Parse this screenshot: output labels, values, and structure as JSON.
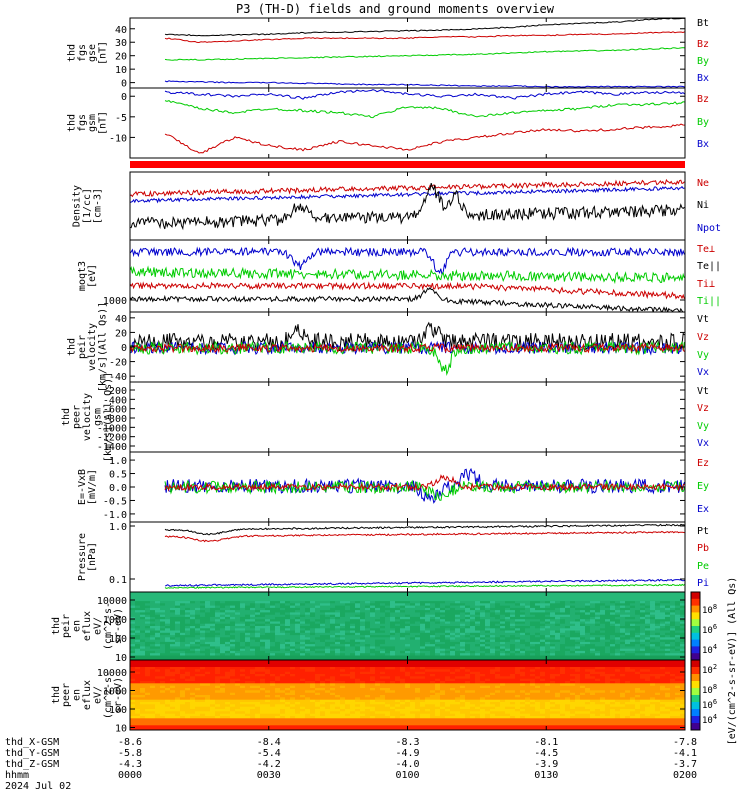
{
  "chart_data": {
    "type": "line",
    "title": "P3 (TH-D) fields and ground moments overview",
    "date_label": "2024 Jul 02",
    "panels": [
      {
        "id": "fgs_gse",
        "ylabel": [
          "thd",
          "fgs",
          "gse",
          "[nT]"
        ],
        "yticks": [
          0,
          10,
          20,
          30,
          40
        ],
        "ylim": [
          -4,
          48
        ],
        "series": [
          {
            "name": "Bt",
            "color": "#000000",
            "values": [
              36,
              35,
              35.5,
              36,
              37,
              37.5,
              38,
              38.5,
              39,
              40,
              41,
              43,
              44,
              45,
              47,
              48
            ]
          },
          {
            "name": "Bz",
            "color": "#cc0000",
            "values": [
              33,
              30,
              31,
              32,
              33,
              33,
              33,
              33,
              34,
              34,
              35,
              35,
              36,
              36,
              37,
              37.5
            ]
          },
          {
            "name": "By",
            "color": "#00cc00",
            "values": [
              17,
              17,
              17.5,
              18,
              18.5,
              19,
              19.5,
              20,
              20.5,
              21,
              22,
              23,
              23.5,
              24,
              25,
              26
            ]
          },
          {
            "name": "Bx",
            "color": "#0000cc",
            "values": [
              1,
              0.5,
              0,
              0,
              -0.5,
              -1,
              -1.5,
              -1.5,
              -2,
              -2.5,
              -2.5,
              -3,
              -3,
              -3,
              -3,
              -3
            ]
          }
        ]
      },
      {
        "id": "fgs_gsm",
        "ylabel": [
          "thd",
          "fgs",
          "gsm",
          "[nT]"
        ],
        "yticks": [
          -10,
          -5,
          0
        ],
        "ylim": [
          -15,
          2
        ],
        "series": [
          {
            "name": "Bz",
            "color": "#cc0000",
            "values": [
              -9,
              -14,
              -10,
              -12,
              -13,
              -11,
              -12,
              -13,
              -11,
              -10,
              -9,
              -8,
              -8.5,
              -8,
              -7.5,
              -7
            ]
          },
          {
            "name": "By",
            "color": "#00cc00",
            "values": [
              -1,
              -3,
              -4,
              -3,
              -3.5,
              -4,
              -5,
              -2.5,
              -3,
              -5,
              -4,
              -3.5,
              -3,
              -2,
              -2,
              -1.5
            ]
          },
          {
            "name": "Bx",
            "color": "#0000cc",
            "values": [
              1,
              0.5,
              0,
              0.5,
              -0.5,
              1,
              1.5,
              0.5,
              0,
              0.5,
              -0.5,
              0.5,
              1,
              0.5,
              1,
              0.8
            ]
          }
        ]
      },
      {
        "id": "density",
        "ylabel": [
          "Density",
          "[1/cc]",
          "[cm-3]"
        ],
        "yticks": [],
        "series": [
          {
            "name": "Ne",
            "color": "#cc0000"
          },
          {
            "name": "Ni",
            "color": "#000000"
          },
          {
            "name": "Npot",
            "color": "#0000cc"
          }
        ]
      },
      {
        "id": "temperature",
        "ylabel": [
          "moqt3",
          "[eV]"
        ],
        "yticks": [
          1000
        ],
        "series": [
          {
            "name": "Te⊥",
            "color": "#cc0000"
          },
          {
            "name": "Te||",
            "color": "#000000"
          },
          {
            "name": "Ti⊥",
            "color": "#cc0000"
          },
          {
            "name": "Ti||",
            "color": "#00cc00"
          }
        ]
      },
      {
        "id": "peir_velocity",
        "ylabel": [
          "thd",
          "peir",
          "velocity",
          "[km/s](All Qs)]"
        ],
        "yticks": [
          40,
          20,
          0,
          -20,
          -40
        ],
        "ylim": [
          -48,
          48
        ],
        "series": [
          {
            "name": "Vt",
            "color": "#000000"
          },
          {
            "name": "Vz",
            "color": "#cc0000"
          },
          {
            "name": "Vy",
            "color": "#00cc00"
          },
          {
            "name": "Vx",
            "color": "#0000cc"
          }
        ]
      },
      {
        "id": "peer_velocity",
        "ylabel": [
          "thd",
          "peer",
          "velocity",
          "gsm",
          "[km/s](All Qs)]"
        ],
        "yticks": [
          -200,
          -400,
          -600,
          -800,
          -1000,
          -1200,
          -1400
        ],
        "series": [
          {
            "name": "Vt",
            "color": "#000000"
          },
          {
            "name": "Vz",
            "color": "#cc0000"
          },
          {
            "name": "Vy",
            "color": "#00cc00"
          },
          {
            "name": "Vx",
            "color": "#0000cc"
          }
        ]
      },
      {
        "id": "efield",
        "ylabel": [
          "E=-VxB",
          "[mV/m]"
        ],
        "yticks": [
          1.0,
          0.5,
          0.0,
          -0.5,
          -1.0
        ],
        "ylim": [
          -1.3,
          1.3
        ],
        "series": [
          {
            "name": "Ez",
            "color": "#cc0000"
          },
          {
            "name": "Ey",
            "color": "#00cc00"
          },
          {
            "name": "Ex",
            "color": "#0000cc"
          }
        ]
      },
      {
        "id": "pressure",
        "ylabel": [
          "Pressure",
          "[nPa]"
        ],
        "yticks": [
          1.0,
          0.1
        ],
        "series": [
          {
            "name": "Pt",
            "color": "#000000"
          },
          {
            "name": "Pb",
            "color": "#cc0000"
          },
          {
            "name": "Pe",
            "color": "#00cc00"
          },
          {
            "name": "Pi",
            "color": "#0000cc"
          }
        ]
      },
      {
        "id": "peir_eflux",
        "type": "heatmap",
        "ylabel": [
          "thd",
          "peir",
          "en",
          "eflux",
          "eV/",
          "(cm^2-s-",
          "sr-eV)"
        ],
        "yticks": [
          10000,
          1000,
          100,
          10
        ]
      },
      {
        "id": "peer_eflux",
        "type": "heatmap",
        "ylabel": [
          "thd",
          "peer",
          "en",
          "eflux",
          "eV/",
          "(cm^2-s-",
          "sr-eV)"
        ],
        "yticks": [
          10000,
          1000,
          100,
          10
        ]
      }
    ],
    "colorbar": {
      "ticks": [
        "10^8",
        "10^6",
        "10^4",
        "10^2"
      ],
      "label": "[eV/(cm^2-s-sr-eV)] (All Qs)"
    },
    "x_axis": {
      "rows": [
        {
          "label": "thd_X-GSM",
          "values": [
            "-8.6",
            "-8.4",
            "-8.3",
            "-8.1",
            "-7.8"
          ]
        },
        {
          "label": "thd_Y-GSM",
          "values": [
            "-5.8",
            "-5.4",
            "-4.9",
            "-4.5",
            "-4.1"
          ]
        },
        {
          "label": "thd_Z-GSM",
          "values": [
            "-4.3",
            "-4.2",
            "-4.0",
            "-3.9",
            "-3.7"
          ]
        },
        {
          "label": "hhmm",
          "values": [
            "0000",
            "0030",
            "0100",
            "0130",
            "0200"
          ]
        }
      ]
    }
  }
}
